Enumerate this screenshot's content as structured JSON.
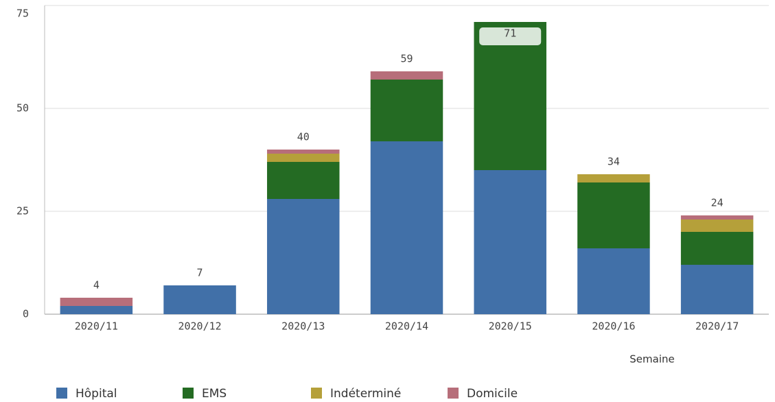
{
  "chart_data": {
    "type": "stacked_bar",
    "categories": [
      "2020/11",
      "2020/12",
      "2020/13",
      "2020/14",
      "2020/15",
      "2020/16",
      "2020/17"
    ],
    "series": [
      {
        "name": "Hôpital",
        "color": "#4170a8",
        "values": [
          2,
          7,
          28,
          42,
          35,
          16,
          12
        ]
      },
      {
        "name": "EMS",
        "color": "#246b23",
        "values": [
          0,
          0,
          9,
          15,
          36,
          16,
          8
        ]
      },
      {
        "name": "Indéterminé",
        "color": "#b5a03a",
        "values": [
          0,
          0,
          2,
          0,
          0,
          2,
          3
        ]
      },
      {
        "name": "Domicile",
        "color": "#b76e7a",
        "values": [
          2,
          0,
          1,
          2,
          0,
          0,
          1
        ]
      }
    ],
    "totals": [
      4,
      7,
      40,
      59,
      71,
      34,
      24
    ],
    "xlabel": "Semaine",
    "ylim": [
      0,
      75
    ],
    "yticks": [
      0,
      25,
      50,
      75
    ],
    "grid": true,
    "legend": "bottom"
  }
}
